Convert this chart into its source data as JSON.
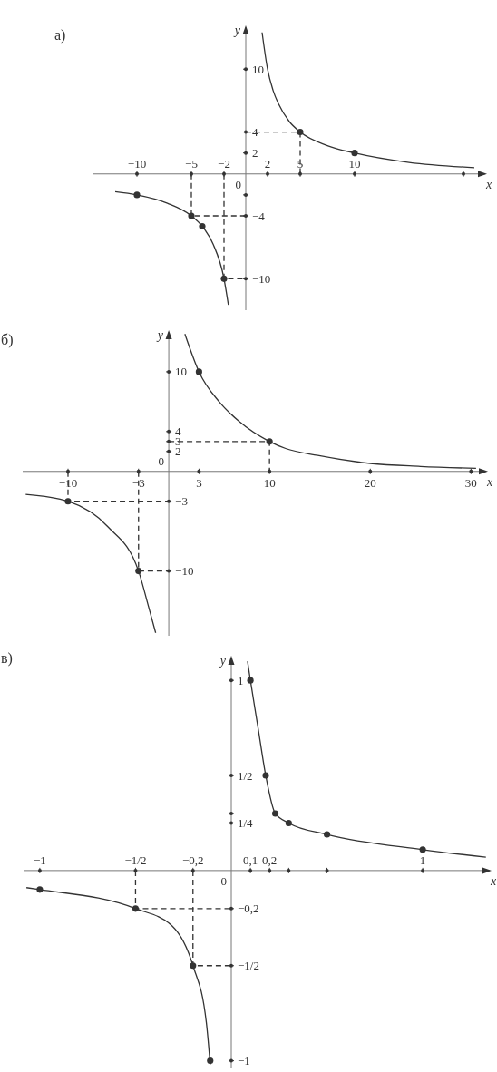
{
  "chart_data": [
    {
      "type": "line",
      "title": "а)",
      "xlabel": "x",
      "ylabel": "y",
      "xlim": [
        -14,
        22
      ],
      "ylim": [
        -13,
        14
      ],
      "xticks": [
        {
          "value": -10,
          "label": "−10"
        },
        {
          "value": -5,
          "label": "−5"
        },
        {
          "value": -2,
          "label": "−2"
        },
        2,
        5,
        10,
        {
          "value": 20,
          "label": null
        }
      ],
      "yticks": [
        10,
        4,
        2,
        {
          "value": -2,
          "label": null
        },
        {
          "value": -4,
          "label": "−4"
        },
        {
          "value": -10,
          "label": "−10"
        }
      ],
      "annotations": [
        "0"
      ],
      "series": [
        {
          "color": "#333333",
          "marker": "none",
          "x": [
            1.5,
            2,
            2.5,
            3,
            4,
            5,
            7.5,
            10,
            15,
            21
          ],
          "values": [
            13.5,
            10,
            8,
            6.7,
            5,
            4,
            2.7,
            2,
            1.1,
            0.6
          ]
        },
        {
          "color": "#333333",
          "marker": "none",
          "x": [
            -12,
            -10,
            -7.2,
            -5,
            -4,
            -3,
            -2,
            -1.6
          ],
          "values": [
            -1.7,
            -2,
            -2.8,
            -4,
            -5,
            -6.7,
            -10,
            -12.5
          ]
        },
        {
          "color": "#333333",
          "line_style": "dashed",
          "marker": "none",
          "x": [
            0,
            5,
            5
          ],
          "values": [
            4,
            4,
            0
          ]
        },
        {
          "color": "#333333",
          "line_style": "dashed",
          "marker": "none",
          "x": [
            -5,
            -5,
            0
          ],
          "values": [
            0,
            -4,
            -4
          ]
        },
        {
          "color": "#333333",
          "line_style": "dashed",
          "marker": "none",
          "x": [
            -2,
            -2,
            0
          ],
          "values": [
            0,
            -10,
            -10
          ]
        },
        {
          "type": "scatter",
          "color": "#333333",
          "marker": "circle",
          "x": [
            -10,
            -5,
            -4,
            -2,
            5,
            10
          ],
          "values": [
            -2,
            -4,
            -5,
            -10,
            4,
            2
          ]
        }
      ]
    },
    {
      "type": "line",
      "title": "б)",
      "xlabel": "x",
      "ylabel": "y",
      "xlim": [
        -14.5,
        31.5
      ],
      "ylim": [
        -16.5,
        14
      ],
      "xticks": [
        {
          "value": -10,
          "label": "−10"
        },
        {
          "value": -3,
          "label": "−3"
        },
        3,
        10,
        20,
        30
      ],
      "yticks": [
        10,
        4,
        3,
        2,
        {
          "value": -3,
          "label": "−3"
        },
        {
          "value": -10,
          "label": "−10"
        }
      ],
      "annotations": [
        "0"
      ],
      "series": [
        {
          "color": "#333333",
          "marker": "none",
          "x": [
            1.6,
            3,
            5,
            7,
            10,
            11.6,
            14.8,
            20,
            25,
            30.5
          ],
          "values": [
            13.8,
            10,
            7,
            5,
            3,
            2.3,
            1.6,
            0.8,
            0.5,
            0.3
          ]
        },
        {
          "color": "#333333",
          "marker": "none",
          "x": [
            -14.2,
            -10,
            -6,
            -3,
            -2,
            -1.3
          ],
          "values": [
            -2.3,
            -3,
            -5.6,
            -10,
            -13.6,
            -16.2
          ]
        },
        {
          "color": "#333333",
          "line_style": "dashed",
          "marker": "none",
          "x": [
            0,
            10,
            10
          ],
          "values": [
            3,
            3,
            0
          ]
        },
        {
          "color": "#333333",
          "line_style": "dashed",
          "marker": "none",
          "x": [
            -10,
            -10,
            0
          ],
          "values": [
            0,
            -3,
            -3
          ]
        },
        {
          "color": "#333333",
          "line_style": "dashed",
          "marker": "none",
          "x": [
            -3,
            -3,
            0
          ],
          "values": [
            0,
            -10,
            -10
          ]
        },
        {
          "type": "scatter",
          "color": "#333333",
          "marker": "circle",
          "x": [
            -10,
            -3,
            3,
            10
          ],
          "values": [
            -3,
            -10,
            10,
            3
          ]
        }
      ]
    },
    {
      "type": "line",
      "title": "в)",
      "xlabel": "x",
      "ylabel": "y",
      "xlim": [
        -1.08,
        1.35
      ],
      "ylim": [
        -1.04,
        1.12
      ],
      "xticks": [
        {
          "value": -1,
          "label": "−1"
        },
        {
          "value": -0.5,
          "label": "−1/2"
        },
        {
          "value": -0.2,
          "label": "−0,2"
        },
        {
          "value": 0.1,
          "label": "0,1"
        },
        {
          "value": 0.2,
          "label": "0,2"
        },
        {
          "value": 0.3,
          "label": null
        },
        {
          "value": 0.5,
          "label": null
        },
        1
      ],
      "yticks": [
        1,
        {
          "value": 0.5,
          "label": "1/2"
        },
        {
          "value": 0.3,
          "label": null
        },
        {
          "value": 0.25,
          "label": "1/4"
        },
        {
          "value": -0.2,
          "label": "−0,2"
        },
        {
          "value": -0.5,
          "label": "−1/2"
        },
        {
          "value": -1,
          "label": "−1"
        }
      ],
      "annotations": [
        "0"
      ],
      "series": [
        {
          "color": "#333333",
          "marker": "none",
          "x": [
            0.085,
            0.1,
            0.14,
            0.18,
            0.23,
            0.3,
            0.5,
            1,
            1.33
          ],
          "values": [
            1.1,
            1,
            0.75,
            0.5,
            0.3,
            0.25,
            0.19,
            0.11,
            0.07
          ]
        },
        {
          "color": "#333333",
          "marker": "none",
          "x": [
            -1.07,
            -1,
            -0.5,
            -0.31,
            -0.2,
            -0.13,
            -0.11
          ],
          "values": [
            -0.09,
            -0.1,
            -0.2,
            -0.29,
            -0.5,
            -0.8,
            -1.02
          ]
        },
        {
          "color": "#333333",
          "line_style": "dashed",
          "marker": "none",
          "x": [
            -0.5,
            -0.5,
            0
          ],
          "values": [
            0,
            -0.2,
            -0.2
          ]
        },
        {
          "color": "#333333",
          "line_style": "dashed",
          "marker": "none",
          "x": [
            -0.2,
            -0.2,
            0
          ],
          "values": [
            0,
            -0.5,
            -0.5
          ]
        },
        {
          "type": "scatter",
          "color": "#333333",
          "marker": "circle",
          "x": [
            -1,
            -0.5,
            -0.2,
            -0.11,
            0.1,
            0.18,
            0.23,
            0.3,
            0.5,
            1
          ],
          "values": [
            -0.1,
            -0.2,
            -0.5,
            -1,
            1,
            0.5,
            0.3,
            0.25,
            0.19,
            0.11
          ]
        }
      ]
    }
  ]
}
